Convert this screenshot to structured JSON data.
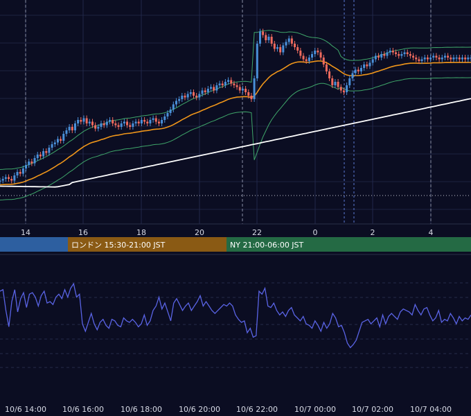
{
  "chart_data": [
    {
      "type": "candlestick",
      "panel": "price",
      "x_ticks": [
        "14",
        "16",
        "18",
        "20",
        "22",
        "0",
        "2",
        "4"
      ],
      "series": [
        {
          "kind": "candles",
          "colors": {
            "up": "#4a90d9",
            "down": "#ef6b5e"
          },
          "values": [
            0.11,
            0.12,
            0.13,
            0.12,
            0.11,
            0.14,
            0.16,
            0.15,
            0.18,
            0.2,
            0.22,
            0.21,
            0.24,
            0.26,
            0.25,
            0.28,
            0.27,
            0.3,
            0.32,
            0.33,
            0.35,
            0.34,
            0.38,
            0.4,
            0.42,
            0.4,
            0.44,
            0.46,
            0.45,
            0.47,
            0.44,
            0.45,
            0.43,
            0.41,
            0.42,
            0.44,
            0.43,
            0.45,
            0.46,
            0.44,
            0.43,
            0.42,
            0.44,
            0.45,
            0.43,
            0.42,
            0.44,
            0.45,
            0.44,
            0.46,
            0.45,
            0.44,
            0.46,
            0.47,
            0.45,
            0.44,
            0.46,
            0.48,
            0.5,
            0.52,
            0.55,
            0.57,
            0.58,
            0.6,
            0.59,
            0.61,
            0.62,
            0.6,
            0.59,
            0.61,
            0.63,
            0.62,
            0.64,
            0.65,
            0.63,
            0.66,
            0.67,
            0.66,
            0.68,
            0.69,
            0.67,
            0.66,
            0.65,
            0.63,
            0.64,
            0.62,
            0.6,
            0.58,
            0.7,
            0.9,
            0.97,
            0.95,
            0.92,
            0.94,
            0.9,
            0.87,
            0.88,
            0.85,
            0.89,
            0.91,
            0.93,
            0.9,
            0.88,
            0.86,
            0.83,
            0.81,
            0.8,
            0.82,
            0.84,
            0.86,
            0.85,
            0.82,
            0.78,
            0.74,
            0.7,
            0.66,
            0.68,
            0.65,
            0.63,
            0.62,
            0.66,
            0.7,
            0.73,
            0.75,
            0.74,
            0.76,
            0.78,
            0.77,
            0.79,
            0.81,
            0.83,
            0.82,
            0.84,
            0.83,
            0.85,
            0.86,
            0.85,
            0.84,
            0.83,
            0.84,
            0.85,
            0.84,
            0.83,
            0.82,
            0.81,
            0.8,
            0.81,
            0.82,
            0.81,
            0.82,
            0.83,
            0.82,
            0.81,
            0.82,
            0.83,
            0.82,
            0.81,
            0.82,
            0.82,
            0.81,
            0.82,
            0.81,
            0.82,
            0.82
          ]
        },
        {
          "kind": "line",
          "color": "#f0961a",
          "role": "moving-average-short"
        },
        {
          "kind": "line",
          "color": "#ffffff",
          "role": "moving-average-long"
        },
        {
          "kind": "band",
          "color": "#3fa66a",
          "role": "bollinger-bands"
        }
      ],
      "sessions": [
        {
          "label": "",
          "color": "#2d5fa0"
        },
        {
          "label": "ロンドン 15:30-21:00 JST",
          "color": "#8a5a14"
        },
        {
          "label": "NY 21:00-06:00 JST",
          "color": "#246a44"
        }
      ],
      "grid": true
    },
    {
      "type": "line",
      "panel": "oscillator",
      "color": "#5a64e6",
      "x_ticks": [
        "10/6 14:00",
        "10/6 16:00",
        "10/6 18:00",
        "10/6 20:00",
        "10/6 22:00",
        "10/7 00:00",
        "10/7 02:00",
        "10/7 04:00"
      ],
      "values": [
        68,
        69,
        55,
        44,
        61,
        69,
        54,
        63,
        67,
        57,
        66,
        67,
        64,
        58,
        65,
        68,
        60,
        61,
        59,
        64,
        66,
        63,
        69,
        64,
        70,
        73,
        64,
        66,
        46,
        41,
        47,
        53,
        46,
        42,
        47,
        49,
        45,
        43,
        49,
        48,
        45,
        44,
        50,
        48,
        47,
        49,
        47,
        44,
        46,
        52,
        45,
        48,
        55,
        58,
        64,
        56,
        60,
        54,
        48,
        60,
        63,
        59,
        55,
        58,
        60,
        55,
        58,
        61,
        65,
        58,
        61,
        58,
        55,
        53,
        55,
        57,
        59,
        58,
        60,
        58,
        52,
        49,
        47,
        48,
        40,
        43,
        37,
        38,
        68,
        66,
        70,
        58,
        57,
        60,
        55,
        52,
        54,
        51,
        55,
        57,
        52,
        50,
        48,
        51,
        46,
        45,
        43,
        48,
        45,
        41,
        47,
        43,
        46,
        53,
        50,
        44,
        45,
        40,
        33,
        30,
        32,
        35,
        41,
        47,
        48,
        49,
        46,
        48,
        50,
        44,
        52,
        46,
        51,
        53,
        51,
        49,
        54,
        56,
        55,
        54,
        52,
        59,
        55,
        52,
        56,
        57,
        52,
        48,
        50,
        55,
        47,
        49,
        48,
        53,
        50,
        46,
        51,
        48,
        50,
        49,
        52
      ],
      "grid": true
    }
  ]
}
